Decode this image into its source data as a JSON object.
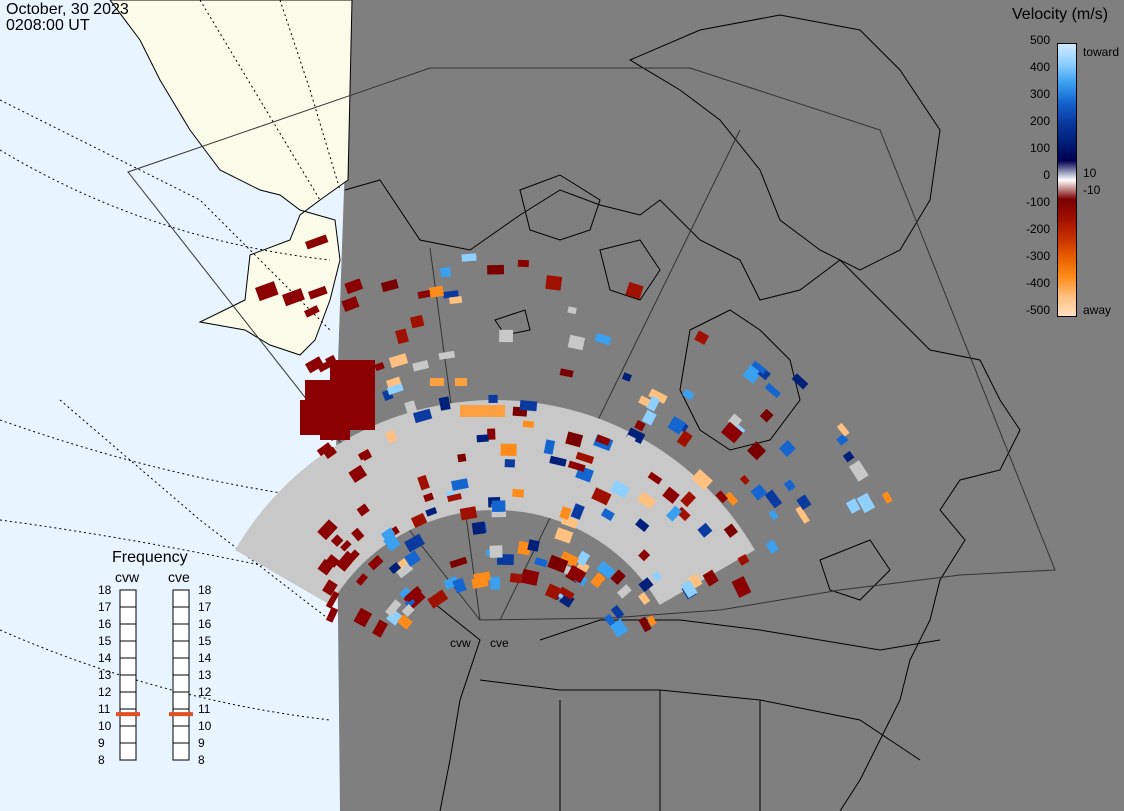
{
  "header": {
    "date": "October, 30 2023",
    "time": "0208:00 UT"
  },
  "colorbar": {
    "title": "Velocity (m/s)",
    "ticks": [
      "500",
      "400",
      "300",
      "200",
      "100",
      "0",
      "-100",
      "-200",
      "-300",
      "-400",
      "-500"
    ],
    "note_top": "toward",
    "note_bottom": "away",
    "label_pos_small": "10",
    "label_neg_small": "-10",
    "colors": [
      "#cfe9ff",
      "#8fd0ff",
      "#3aa0f0",
      "#1565d0",
      "#0a3aa0",
      "#00207a",
      "#000050",
      "#ffffff",
      "#7a0000",
      "#a01000",
      "#c83000",
      "#e86000",
      "#ff8c1a",
      "#ffc080",
      "#ffe0c0"
    ]
  },
  "frequency": {
    "title": "Frequency",
    "radars": [
      "cvw",
      "cve"
    ],
    "scale": [
      "18",
      "17",
      "16",
      "15",
      "14",
      "13",
      "12",
      "11",
      "10",
      "9",
      "8"
    ],
    "current_mhz": [
      10.7,
      10.7
    ],
    "marker_color": "#e05020"
  },
  "map": {
    "ocean_color": "#e8f4ff",
    "land_color": "#fbfbea",
    "night_color": "#7f7f7f",
    "scatter_gray": "#c8c8c8",
    "radar_sites": [
      "cvw",
      "cve"
    ]
  }
}
